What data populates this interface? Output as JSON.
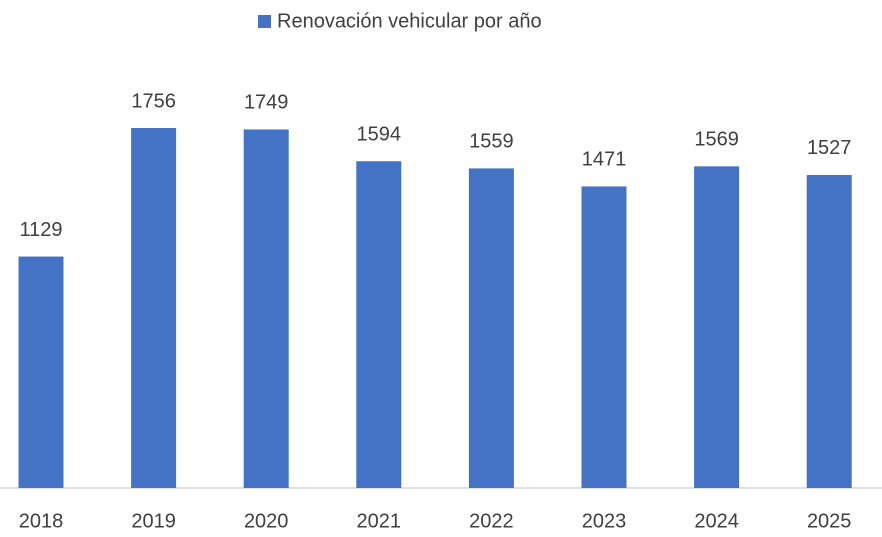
{
  "chart_data": {
    "type": "bar",
    "legend": "Renovación vehicular por año",
    "categories": [
      "2018",
      "2019",
      "2020",
      "2021",
      "2022",
      "2023",
      "2024",
      "2025"
    ],
    "values": [
      1129,
      1756,
      1749,
      1594,
      1559,
      1471,
      1569,
      1527
    ],
    "color": "#4472c4",
    "ylim": [
      0,
      2000
    ],
    "grid": false
  }
}
